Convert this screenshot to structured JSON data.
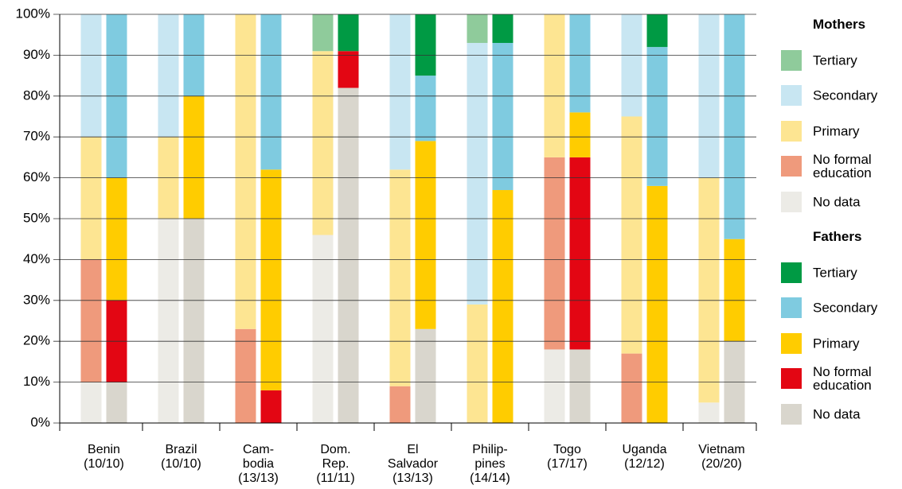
{
  "chart_data": {
    "type": "stacked_bar",
    "categories": [
      [
        "Benin",
        "(10/10)"
      ],
      [
        "Brazil",
        "(10/10)"
      ],
      [
        "Cam-",
        "bodia",
        "(13/13)"
      ],
      [
        "Dom.",
        "Rep.",
        "(11/11)"
      ],
      [
        "El",
        "Salvador",
        "(13/13)"
      ],
      [
        "Philip-",
        "pines",
        "(14/14)"
      ],
      [
        "Togo",
        "(17/17)"
      ],
      [
        "Uganda",
        "(12/12)"
      ],
      [
        "Vietnam",
        "(20/20)"
      ]
    ],
    "groups": [
      {
        "name": "Mothers",
        "series": [
          {
            "name": "Tertiary",
            "color": "#8fcb9b",
            "values": [
              0,
              0,
              0,
              9,
              0,
              7,
              0,
              0,
              0
            ]
          },
          {
            "name": "Secondary",
            "color": "#c8e6f2",
            "values": [
              30,
              30,
              0,
              0,
              38,
              64,
              0,
              25,
              40
            ]
          },
          {
            "name": "Primary",
            "color": "#fde592",
            "values": [
              30,
              20,
              77,
              45,
              53,
              29,
              35,
              58,
              55
            ]
          },
          {
            "name": "No formal education",
            "color": "#ef9a7c",
            "values": [
              30,
              0,
              23,
              0,
              9,
              0,
              47,
              17,
              0
            ]
          },
          {
            "name": "No data",
            "color": "#ecebe6",
            "values": [
              10,
              50,
              0,
              46,
              0,
              0,
              18,
              0,
              5
            ]
          }
        ]
      },
      {
        "name": "Fathers",
        "series": [
          {
            "name": "Tertiary",
            "color": "#009a44",
            "values": [
              0,
              0,
              0,
              9,
              15,
              7,
              0,
              8,
              0
            ]
          },
          {
            "name": "Secondary",
            "color": "#7fcbe0",
            "values": [
              40,
              20,
              38,
              0,
              16,
              36,
              24,
              34,
              55
            ]
          },
          {
            "name": "Primary",
            "color": "#ffcc00",
            "values": [
              30,
              30,
              54,
              0,
              46,
              57,
              11,
              58,
              25
            ]
          },
          {
            "name": "No formal education",
            "color": "#e30613",
            "values": [
              20,
              0,
              8,
              9,
              0,
              0,
              47,
              0,
              0
            ]
          },
          {
            "name": "No data",
            "color": "#d9d6cd",
            "values": [
              10,
              50,
              0,
              82,
              23,
              0,
              18,
              0,
              20
            ]
          }
        ]
      }
    ],
    "ylim": [
      0,
      100
    ],
    "yticks": [
      {
        "value": 0,
        "label": "0%"
      },
      {
        "value": 10,
        "label": "10%"
      },
      {
        "value": 20,
        "label": "20%"
      },
      {
        "value": 30,
        "label": "30%"
      },
      {
        "value": 40,
        "label": "40%"
      },
      {
        "value": 50,
        "label": "50%"
      },
      {
        "value": 60,
        "label": "60%"
      },
      {
        "value": 70,
        "label": "70%"
      },
      {
        "value": 80,
        "label": "80%"
      },
      {
        "value": 90,
        "label": "90%"
      },
      {
        "value": 100,
        "label": "100%"
      }
    ],
    "grid": true
  }
}
